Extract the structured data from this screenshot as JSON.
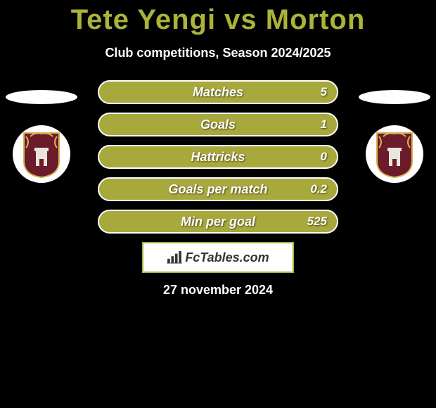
{
  "title": "Tete Yengi vs Morton",
  "subtitle": "Club competitions, Season 2024/2025",
  "date": "27 november 2024",
  "branding": {
    "label": "FcTables.com"
  },
  "colors": {
    "title_color": "#abb33a",
    "bar_fill": "#a8a93c",
    "bar_border": "#ffffff",
    "background": "#000000",
    "branding_border": "#aab23a",
    "crest_primary": "#6b1b2a",
    "crest_secondary": "#d8b557"
  },
  "stats": [
    {
      "label": "Matches",
      "value": "5"
    },
    {
      "label": "Goals",
      "value": "1"
    },
    {
      "label": "Hattricks",
      "value": "0"
    },
    {
      "label": "Goals per match",
      "value": "0.2"
    },
    {
      "label": "Min per goal",
      "value": "525"
    }
  ],
  "sides": {
    "left": {
      "ellipse": true,
      "badge": "northampton-crest"
    },
    "right": {
      "ellipse": true,
      "badge": "northampton-crest"
    }
  }
}
